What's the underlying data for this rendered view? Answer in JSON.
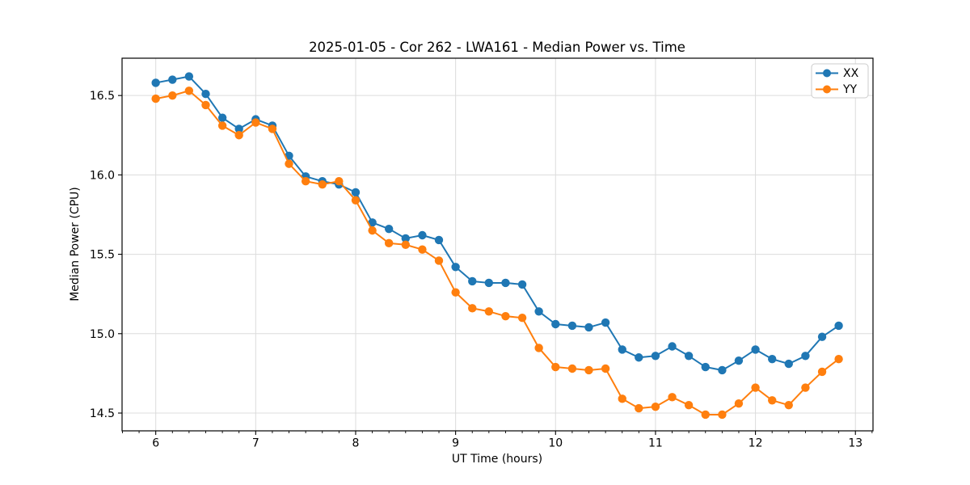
{
  "figure": {
    "title": "2025-01-05 - Cor 262 - LWA161 - Median Power vs. Time",
    "xlabel": "UT Time (hours)",
    "ylabel": "Median Power (CPU)"
  },
  "chart_data": {
    "type": "line",
    "title": "2025-01-05 - Cor 262 - LWA161 - Median Power vs. Time",
    "xlabel": "UT Time (hours)",
    "ylabel": "Median Power (CPU)",
    "grid": true,
    "legend_position": "upper right",
    "marker": "circle",
    "xlim": [
      5.663,
      13.176
    ],
    "ylim": [
      14.388,
      16.735
    ],
    "x_ticks": [
      6,
      7,
      8,
      9,
      10,
      11,
      12,
      13
    ],
    "x_tick_labels": [
      "6",
      "7",
      "8",
      "9",
      "10",
      "11",
      "12",
      "13"
    ],
    "x_minor_tick_step": 0.16667,
    "y_ticks": [
      14.5,
      15.0,
      15.5,
      16.0,
      16.5
    ],
    "y_tick_labels": [
      "14.5",
      "15.0",
      "15.5",
      "16.0",
      "16.5"
    ],
    "x": [
      6.0,
      6.167,
      6.333,
      6.5,
      6.667,
      6.833,
      7.0,
      7.167,
      7.333,
      7.5,
      7.667,
      7.833,
      8.0,
      8.167,
      8.333,
      8.5,
      8.667,
      8.833,
      9.0,
      9.167,
      9.333,
      9.5,
      9.667,
      9.833,
      10.0,
      10.167,
      10.333,
      10.5,
      10.667,
      10.833,
      11.0,
      11.167,
      11.333,
      11.5,
      11.667,
      11.833,
      12.0,
      12.167,
      12.333,
      12.5,
      12.667,
      12.833
    ],
    "series": [
      {
        "name": "XX",
        "color": "#1f77b4",
        "values": [
          16.58,
          16.6,
          16.62,
          16.51,
          16.36,
          16.29,
          16.35,
          16.31,
          16.12,
          15.99,
          15.96,
          15.94,
          15.89,
          15.7,
          15.66,
          15.6,
          15.62,
          15.59,
          15.42,
          15.33,
          15.32,
          15.32,
          15.31,
          15.14,
          15.06,
          15.05,
          15.04,
          15.07,
          14.9,
          14.85,
          14.86,
          14.92,
          14.86,
          14.79,
          14.77,
          14.83,
          14.9,
          14.84,
          14.81,
          14.86,
          14.98,
          15.05
        ]
      },
      {
        "name": "YY",
        "color": "#ff7f0e",
        "values": [
          16.48,
          16.5,
          16.53,
          16.44,
          16.31,
          16.25,
          16.33,
          16.29,
          16.07,
          15.96,
          15.94,
          15.96,
          15.84,
          15.65,
          15.57,
          15.56,
          15.53,
          15.46,
          15.26,
          15.16,
          15.14,
          15.11,
          15.1,
          14.91,
          14.79,
          14.78,
          14.77,
          14.78,
          14.59,
          14.53,
          14.54,
          14.6,
          14.55,
          14.49,
          14.49,
          14.56,
          14.66,
          14.58,
          14.55,
          14.66,
          14.76,
          14.84
        ]
      }
    ],
    "style": {
      "grid_color": "#dcdcdc",
      "spine_color": "#000000",
      "background": "#ffffff",
      "line_width": 2,
      "marker_radius": 5.2
    }
  }
}
